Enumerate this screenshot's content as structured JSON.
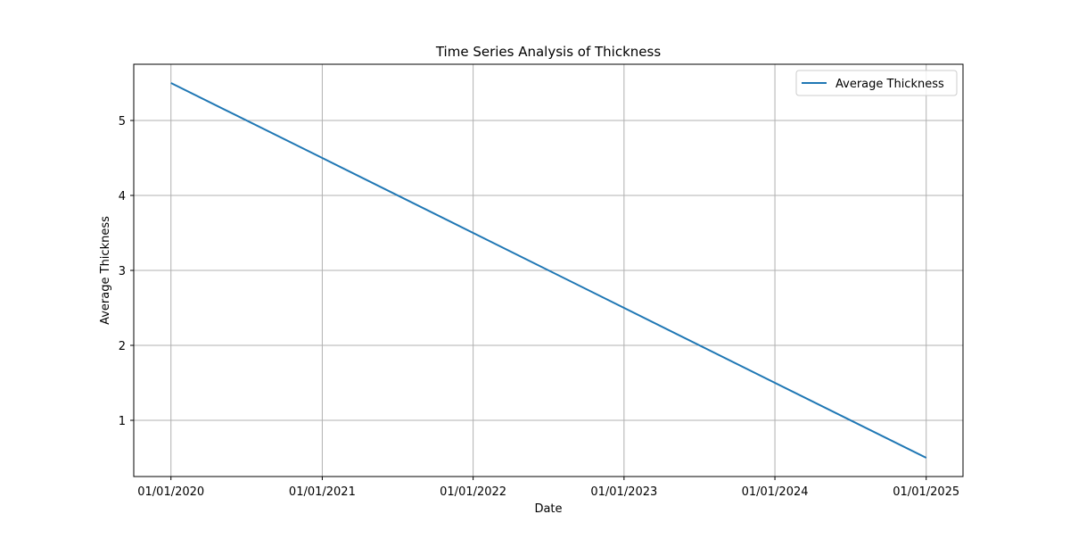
{
  "chart_data": {
    "type": "line",
    "title": "Time Series Analysis of Thickness",
    "xlabel": "Date",
    "ylabel": "Average Thickness",
    "x": [
      "2020-01-01",
      "2021-01-01",
      "2022-01-01",
      "2023-01-01",
      "2024-01-01",
      "2025-01-01"
    ],
    "x_tick_labels": [
      "01/01/2020",
      "01/01/2021",
      "01/01/2022",
      "01/01/2023",
      "01/01/2024",
      "01/01/2025"
    ],
    "series": [
      {
        "name": "Average Thickness",
        "color": "#1f77b4",
        "values": [
          5.5,
          4.5,
          3.5,
          2.5,
          1.5,
          0.5
        ]
      }
    ],
    "y_ticks": [
      1,
      2,
      3,
      4,
      5
    ],
    "ylim": [
      0.25,
      5.75
    ],
    "xlim": [
      "2019-10-03",
      "2025-03-31"
    ],
    "grid": true,
    "legend_position": "top-right",
    "colors": {
      "grid": "#b0b0b0",
      "axes": "#000000"
    }
  }
}
